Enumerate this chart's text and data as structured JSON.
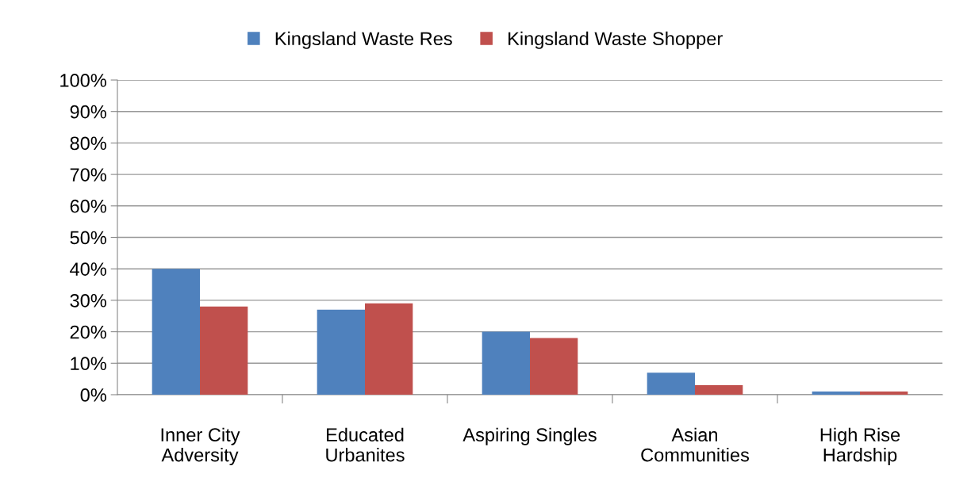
{
  "chart_data": {
    "type": "bar",
    "categories": [
      "Inner City\nAdversity",
      "Educated\nUrbanites",
      "Aspiring Singles",
      "Asian\nCommunities",
      "High Rise\nHardship"
    ],
    "series": [
      {
        "name": "Kingsland Waste Res",
        "color": "#4f81bd",
        "values": [
          40,
          27,
          20,
          7,
          1
        ]
      },
      {
        "name": "Kingsland Waste Shopper",
        "color": "#c0504d",
        "values": [
          28,
          29,
          18,
          3,
          1
        ]
      }
    ],
    "ylim": [
      0,
      100
    ],
    "yticks": [
      {
        "value": 0,
        "label": "0%"
      },
      {
        "value": 10,
        "label": "10%"
      },
      {
        "value": 20,
        "label": "20%"
      },
      {
        "value": 30,
        "label": "30%"
      },
      {
        "value": 40,
        "label": "40%"
      },
      {
        "value": 50,
        "label": "50%"
      },
      {
        "value": 60,
        "label": "60%"
      },
      {
        "value": 70,
        "label": "70%"
      },
      {
        "value": 80,
        "label": "80%"
      },
      {
        "value": 90,
        "label": "90%"
      },
      {
        "value": 100,
        "label": "100%"
      }
    ],
    "grid": "y",
    "legend": "top"
  }
}
